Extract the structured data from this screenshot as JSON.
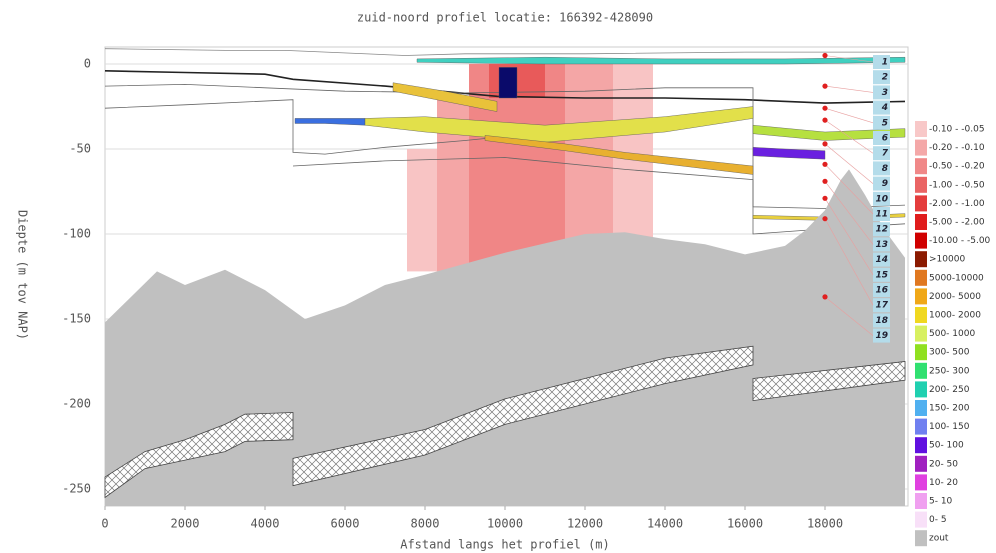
{
  "chart_data": {
    "type": "profile",
    "title": "zuid-noord profiel locatie: 166392-428090",
    "xlabel": "Afstand langs het profiel (m)",
    "ylabel": "Diepte (m tov NAP)",
    "xlim": [
      0,
      20000
    ],
    "ylim": [
      -260,
      10
    ],
    "xticks": [
      0,
      2000,
      4000,
      6000,
      8000,
      10000,
      12000,
      14000,
      16000,
      18000
    ],
    "yticks": [
      0,
      -50,
      -100,
      -150,
      -200,
      -250
    ],
    "grid": true,
    "drawdown": [
      {
        "x0": 7550,
        "x1": 8300,
        "y0": -50,
        "y1": -122,
        "color": "#f8c4c4"
      },
      {
        "x0": 8300,
        "x1": 9100,
        "y0": -20,
        "y1": -122,
        "color": "#f4a6a6"
      },
      {
        "x0": 9100,
        "x1": 11500,
        "y0": 0,
        "y1": -118,
        "color": "#f08686"
      },
      {
        "x0": 9600,
        "x1": 11000,
        "y0": 0,
        "y1": -20,
        "color": "#e85a5a"
      },
      {
        "x0": 11500,
        "x1": 12700,
        "y0": 0,
        "y1": -110,
        "color": "#f4a6a6"
      },
      {
        "x0": 12700,
        "x1": 13700,
        "y0": 0,
        "y1": -105,
        "color": "#f8c4c4"
      }
    ],
    "lines": [
      {
        "color": "#888888",
        "x": [
          0,
          3000,
          4500,
          7500,
          9000,
          12000,
          16000,
          20000
        ],
        "y": [
          9,
          8,
          8,
          5,
          6,
          6,
          7,
          7
        ]
      },
      {
        "color": "#222222",
        "x": [
          0,
          2000,
          4000,
          4700,
          7000,
          9800,
          12000,
          14000,
          16000,
          18000,
          20000
        ],
        "y": [
          -4,
          -5,
          -6,
          -9,
          -13,
          -19,
          -20,
          -20,
          -21,
          -23,
          -22
        ]
      },
      {
        "color": "#666666",
        "x": [
          0,
          2000,
          4700,
          4700,
          5500,
          7000,
          9000,
          12000,
          14000,
          16200
        ],
        "y": [
          -26,
          -24,
          -21,
          -52,
          -53,
          -49,
          -45,
          -38,
          -33,
          -30
        ]
      },
      {
        "color": "#666666",
        "x": [
          4700,
          7000,
          10000,
          13000,
          16200,
          16200,
          18000,
          20000
        ],
        "y": [
          -60,
          -57,
          -55,
          -62,
          -68,
          -84,
          -85,
          -83
        ]
      },
      {
        "color": "#666666",
        "x": [
          0,
          2000,
          4000,
          6000,
          9000,
          12000,
          14000,
          16200,
          16200,
          18000,
          20000
        ],
        "y": [
          -13,
          -12,
          -14,
          -16,
          -17,
          -16,
          -14,
          -14,
          -100,
          -97,
          -94
        ]
      }
    ],
    "layers": [
      {
        "color": "#e9c23a",
        "x": [
          7200,
          8500,
          9800
        ],
        "top": [
          -11,
          -16,
          -22
        ],
        "bottom": [
          -16,
          -22,
          -28
        ]
      },
      {
        "color": "#3a6fe0",
        "x": [
          4750,
          5500,
          6500
        ],
        "top": [
          -32,
          -32,
          -32
        ],
        "bottom": [
          -35,
          -35,
          -36
        ]
      },
      {
        "color": "#e2e04a",
        "x": [
          6500,
          8000,
          11000,
          14000,
          16200
        ],
        "top": [
          -32,
          -31,
          -36,
          -31,
          -25
        ],
        "bottom": [
          -36,
          -40,
          -46,
          -40,
          -32
        ]
      },
      {
        "color": "#e8b030",
        "x": [
          9500,
          11500,
          13000,
          16200
        ],
        "top": [
          -42,
          -47,
          -52,
          -60
        ],
        "bottom": [
          -45,
          -51,
          -56,
          -65
        ]
      },
      {
        "color": "#b6e040",
        "x": [
          16200,
          18000,
          20000
        ],
        "top": [
          -36,
          -40,
          -38
        ],
        "bottom": [
          -41,
          -45,
          -43
        ]
      },
      {
        "color": "#6a20e0",
        "x": [
          16200,
          17000,
          18000
        ],
        "top": [
          -49,
          -50,
          -51
        ],
        "bottom": [
          -54,
          -55,
          -56
        ]
      },
      {
        "color": "#e8d040",
        "x": [
          16200,
          18000,
          20000
        ],
        "top": [
          -89,
          -90,
          -88
        ],
        "bottom": [
          -91,
          -92,
          -90
        ]
      },
      {
        "color": "#40d0c0",
        "x": [
          7800,
          11000,
          14000,
          17000,
          20000
        ],
        "top": [
          3,
          4,
          3,
          3,
          4
        ],
        "bottom": [
          1,
          0,
          0,
          0,
          1
        ]
      },
      {
        "color": "#0a0a6a",
        "x": [
          9850,
          10300
        ],
        "top": [
          -2,
          -2
        ],
        "bottom": [
          -20,
          -20
        ]
      }
    ],
    "salt": {
      "name": "zout",
      "color": "#c0c0c0",
      "x": [
        0,
        1300,
        2000,
        3000,
        4000,
        5000,
        6000,
        7000,
        8000,
        10000,
        12000,
        13000,
        14000,
        15000,
        16000,
        17000,
        17500,
        18000,
        18400,
        18600,
        19000,
        19500,
        20000
      ],
      "y": [
        -152,
        -122,
        -130,
        -121,
        -133,
        -150,
        -142,
        -130,
        -124,
        -111,
        -100,
        -99,
        -103,
        -106,
        -112,
        -107,
        -98,
        -86,
        -68,
        -62,
        -77,
        -98,
        -114
      ]
    },
    "hatched": [
      {
        "x": [
          0,
          1000,
          2000,
          3000,
          3500,
          4700,
          4700,
          3500,
          3000,
          2000,
          1000,
          0
        ],
        "y": [
          -243,
          -228,
          -221,
          -212,
          -206,
          -205,
          -221,
          -222,
          -228,
          -233,
          -238,
          -255
        ]
      },
      {
        "x": [
          4700,
          8000,
          10000,
          12000,
          14000,
          16200,
          16200,
          14000,
          12000,
          10000,
          8000,
          4700
        ],
        "y": [
          -232,
          -215,
          -197,
          -185,
          -173,
          -166,
          -177,
          -188,
          -200,
          -212,
          -230,
          -248
        ]
      },
      {
        "x": [
          16200,
          20000,
          20000,
          16200
        ],
        "y": [
          -185,
          -175,
          -186,
          -198
        ]
      }
    ],
    "wells": {
      "x": 18000,
      "depths": [
        5,
        -13,
        -26,
        -33,
        -47,
        -59,
        -69,
        -79,
        -91,
        -137
      ]
    },
    "filters": [
      1,
      2,
      3,
      4,
      5,
      6,
      7,
      8,
      9,
      10,
      11,
      12,
      13,
      14,
      15,
      16,
      17,
      18,
      19
    ],
    "legend": [
      {
        "label": "-0.10 - -0.05",
        "color": "#f8c8c8"
      },
      {
        "label": "-0.20 - -0.10",
        "color": "#f4a8a8"
      },
      {
        "label": "-0.50 - -0.20",
        "color": "#f08888"
      },
      {
        "label": "-1.00 - -0.50",
        "color": "#ea6464"
      },
      {
        "label": "-2.00 - -1.00",
        "color": "#e43c3c"
      },
      {
        "label": "-5.00 - -2.00",
        "color": "#e01c1c"
      },
      {
        "label": "-10.00 - -5.00",
        "color": "#d00000"
      },
      {
        "label": ">10000",
        "color": "#8b1a00"
      },
      {
        "label": "5000-10000",
        "color": "#e07820"
      },
      {
        "label": "2000- 5000",
        "color": "#f0a818"
      },
      {
        "label": "1000- 2000",
        "color": "#f0d820"
      },
      {
        "label": "500- 1000",
        "color": "#d8f060"
      },
      {
        "label": "300- 500",
        "color": "#90e020"
      },
      {
        "label": "250- 300",
        "color": "#30e070"
      },
      {
        "label": "200- 250",
        "color": "#20d0b0"
      },
      {
        "label": "150- 200",
        "color": "#50b0f0"
      },
      {
        "label": "100- 150",
        "color": "#7080f0"
      },
      {
        "label": "50- 100",
        "color": "#6010e0"
      },
      {
        "label": "20- 50",
        "color": "#a020c0"
      },
      {
        "label": "10- 20",
        "color": "#e040e0"
      },
      {
        "label": "5- 10",
        "color": "#f0a0f0"
      },
      {
        "label": "0- 5",
        "color": "#f8e0f8"
      },
      {
        "label": "zout",
        "color": "#c0c0c0"
      }
    ]
  }
}
